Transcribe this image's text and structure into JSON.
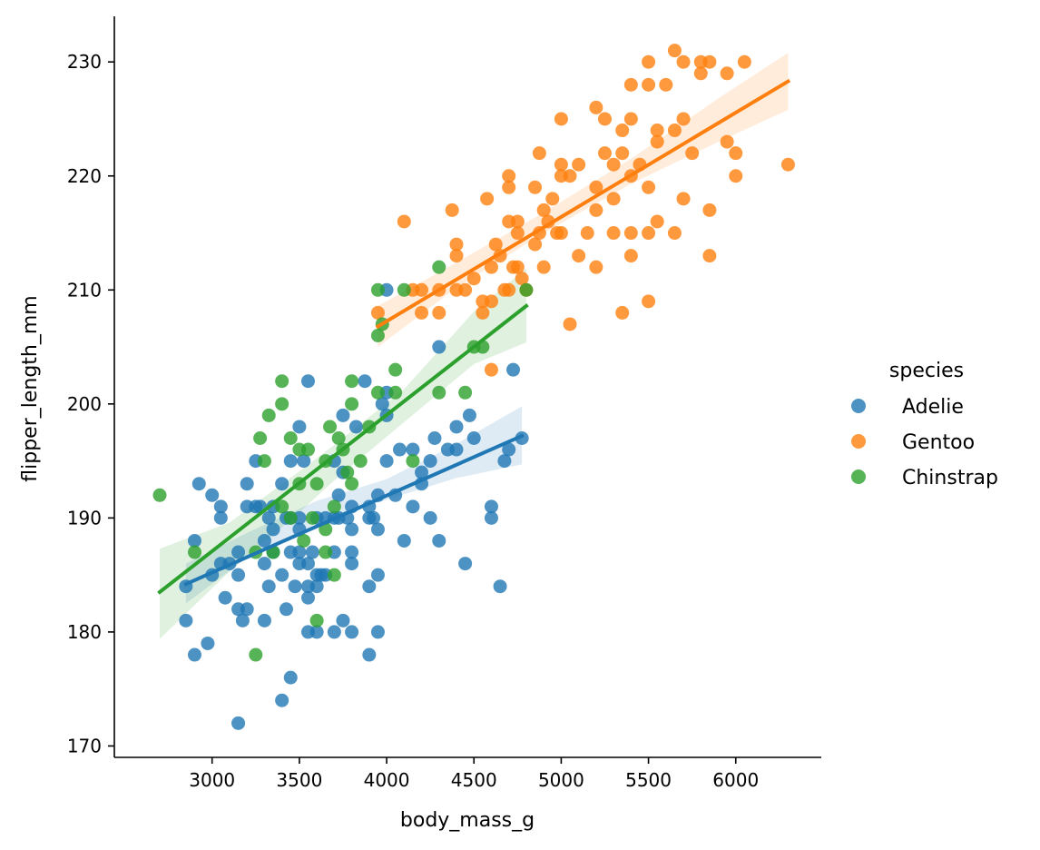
{
  "chart_data": {
    "type": "scatter",
    "title": "",
    "xlabel": "body_mass_g",
    "ylabel": "flipper_length_mm",
    "xlim": [
      2440,
      6490
    ],
    "ylim": [
      169,
      234
    ],
    "xticks": [
      3000,
      3500,
      4000,
      4500,
      5000,
      5500,
      6000
    ],
    "yticks": [
      170,
      180,
      190,
      200,
      210,
      220,
      230
    ],
    "grid": false,
    "legend": {
      "title": "species",
      "placement": "right"
    },
    "series": [
      {
        "name": "Adelie",
        "color": "#1f77b4",
        "regression": {
          "x": [
            2850,
            4775
          ],
          "y": [
            184.2,
            197.2
          ]
        },
        "ci": {
          "x": [
            2850,
            3200,
            3600,
            4000,
            4400,
            4775
          ],
          "lower": [
            182.5,
            186.5,
            189.5,
            191.6,
            193.5,
            194.7
          ],
          "upper": [
            186.0,
            188.7,
            191.5,
            193.4,
            196.5,
            199.8
          ]
        },
        "points": [
          [
            2850,
            184
          ],
          [
            2850,
            181
          ],
          [
            2900,
            178
          ],
          [
            2900,
            188
          ],
          [
            2925,
            193
          ],
          [
            2975,
            179
          ],
          [
            3000,
            185
          ],
          [
            3000,
            192
          ],
          [
            3050,
            186
          ],
          [
            3050,
            191
          ],
          [
            3050,
            190
          ],
          [
            3075,
            183
          ],
          [
            3100,
            186
          ],
          [
            3150,
            187
          ],
          [
            3150,
            185
          ],
          [
            3150,
            182
          ],
          [
            3150,
            172
          ],
          [
            3175,
            181
          ],
          [
            3200,
            193
          ],
          [
            3200,
            182
          ],
          [
            3200,
            191
          ],
          [
            3250,
            195
          ],
          [
            3250,
            191
          ],
          [
            3275,
            191
          ],
          [
            3300,
            181
          ],
          [
            3300,
            186
          ],
          [
            3300,
            188
          ],
          [
            3325,
            184
          ],
          [
            3325,
            190
          ],
          [
            3350,
            189
          ],
          [
            3350,
            191
          ],
          [
            3350,
            187
          ],
          [
            3400,
            185
          ],
          [
            3400,
            193
          ],
          [
            3400,
            174
          ],
          [
            3425,
            182
          ],
          [
            3425,
            190
          ],
          [
            3450,
            190
          ],
          [
            3450,
            187
          ],
          [
            3450,
            195
          ],
          [
            3450,
            176
          ],
          [
            3475,
            184
          ],
          [
            3500,
            187
          ],
          [
            3500,
            189
          ],
          [
            3500,
            198
          ],
          [
            3500,
            190
          ],
          [
            3500,
            186
          ],
          [
            3525,
            195
          ],
          [
            3550,
            202
          ],
          [
            3550,
            184
          ],
          [
            3550,
            180
          ],
          [
            3550,
            183
          ],
          [
            3550,
            186
          ],
          [
            3575,
            187
          ],
          [
            3600,
            180
          ],
          [
            3600,
            185
          ],
          [
            3600,
            184
          ],
          [
            3600,
            190
          ],
          [
            3625,
            185
          ],
          [
            3650,
            190
          ],
          [
            3650,
            185
          ],
          [
            3700,
            190
          ],
          [
            3700,
            180
          ],
          [
            3700,
            187
          ],
          [
            3700,
            195
          ],
          [
            3725,
            192
          ],
          [
            3725,
            190
          ],
          [
            3750,
            199
          ],
          [
            3750,
            181
          ],
          [
            3750,
            194
          ],
          [
            3775,
            190
          ],
          [
            3800,
            187
          ],
          [
            3800,
            186
          ],
          [
            3800,
            180
          ],
          [
            3800,
            189
          ],
          [
            3800,
            191
          ],
          [
            3825,
            198
          ],
          [
            3875,
            202
          ],
          [
            3900,
            184
          ],
          [
            3900,
            190
          ],
          [
            3900,
            178
          ],
          [
            3900,
            191
          ],
          [
            3925,
            190
          ],
          [
            3950,
            185
          ],
          [
            3950,
            180
          ],
          [
            3950,
            192
          ],
          [
            3950,
            189
          ],
          [
            3975,
            200
          ],
          [
            4000,
            199
          ],
          [
            4000,
            201
          ],
          [
            4000,
            195
          ],
          [
            4000,
            210
          ],
          [
            4050,
            192
          ],
          [
            4075,
            196
          ],
          [
            4100,
            188
          ],
          [
            4150,
            191
          ],
          [
            4150,
            196
          ],
          [
            4200,
            193
          ],
          [
            4200,
            194
          ],
          [
            4250,
            190
          ],
          [
            4250,
            195
          ],
          [
            4275,
            197
          ],
          [
            4300,
            188
          ],
          [
            4300,
            205
          ],
          [
            4350,
            196
          ],
          [
            4400,
            198
          ],
          [
            4400,
            196
          ],
          [
            4450,
            186
          ],
          [
            4475,
            199
          ],
          [
            4500,
            197
          ],
          [
            4600,
            191
          ],
          [
            4600,
            190
          ],
          [
            4650,
            184
          ],
          [
            4675,
            195
          ],
          [
            4700,
            196
          ],
          [
            4725,
            203
          ],
          [
            4775,
            197
          ]
        ]
      },
      {
        "name": "Gentoo",
        "color": "#ff7f0e",
        "regression": {
          "x": [
            3950,
            6300
          ],
          "y": [
            206.8,
            228.3
          ]
        },
        "ci": {
          "x": [
            3950,
            4400,
            4900,
            5400,
            5900,
            6300
          ],
          "lower": [
            205.0,
            210.2,
            215.0,
            219.3,
            223.0,
            225.8
          ],
          "upper": [
            208.6,
            212.4,
            216.8,
            221.5,
            226.8,
            230.8
          ]
        },
        "points": [
          [
            3950,
            208
          ],
          [
            4100,
            216
          ],
          [
            4150,
            210
          ],
          [
            4200,
            210
          ],
          [
            4200,
            208
          ],
          [
            4300,
            210
          ],
          [
            4300,
            208
          ],
          [
            4375,
            217
          ],
          [
            4400,
            214
          ],
          [
            4400,
            213
          ],
          [
            4400,
            210
          ],
          [
            4450,
            210
          ],
          [
            4500,
            211
          ],
          [
            4550,
            208
          ],
          [
            4550,
            209
          ],
          [
            4575,
            218
          ],
          [
            4600,
            203
          ],
          [
            4600,
            212
          ],
          [
            4600,
            209
          ],
          [
            4625,
            214
          ],
          [
            4650,
            213
          ],
          [
            4675,
            210
          ],
          [
            4700,
            216
          ],
          [
            4700,
            220
          ],
          [
            4700,
            219
          ],
          [
            4700,
            210
          ],
          [
            4725,
            212
          ],
          [
            4750,
            216
          ],
          [
            4750,
            215
          ],
          [
            4750,
            212
          ],
          [
            4775,
            211
          ],
          [
            4800,
            210
          ],
          [
            4850,
            214
          ],
          [
            4850,
            219
          ],
          [
            4875,
            215
          ],
          [
            4875,
            222
          ],
          [
            4900,
            217
          ],
          [
            4900,
            212
          ],
          [
            4925,
            216
          ],
          [
            4950,
            218
          ],
          [
            4975,
            215
          ],
          [
            5000,
            225
          ],
          [
            5000,
            221
          ],
          [
            5000,
            220
          ],
          [
            5000,
            215
          ],
          [
            5050,
            220
          ],
          [
            5050,
            207
          ],
          [
            5100,
            221
          ],
          [
            5100,
            213
          ],
          [
            5150,
            215
          ],
          [
            5200,
            226
          ],
          [
            5200,
            217
          ],
          [
            5200,
            219
          ],
          [
            5200,
            212
          ],
          [
            5250,
            225
          ],
          [
            5250,
            222
          ],
          [
            5300,
            221
          ],
          [
            5300,
            218
          ],
          [
            5300,
            215
          ],
          [
            5350,
            224
          ],
          [
            5350,
            222
          ],
          [
            5350,
            208
          ],
          [
            5400,
            228
          ],
          [
            5400,
            225
          ],
          [
            5400,
            220
          ],
          [
            5400,
            215
          ],
          [
            5400,
            213
          ],
          [
            5450,
            221
          ],
          [
            5500,
            230
          ],
          [
            5500,
            228
          ],
          [
            5500,
            219
          ],
          [
            5500,
            215
          ],
          [
            5500,
            209
          ],
          [
            5550,
            224
          ],
          [
            5550,
            223
          ],
          [
            5550,
            216
          ],
          [
            5600,
            228
          ],
          [
            5650,
            231
          ],
          [
            5650,
            224
          ],
          [
            5650,
            215
          ],
          [
            5700,
            230
          ],
          [
            5700,
            225
          ],
          [
            5700,
            218
          ],
          [
            5750,
            222
          ],
          [
            5800,
            229
          ],
          [
            5800,
            230
          ],
          [
            5850,
            230
          ],
          [
            5850,
            217
          ],
          [
            5850,
            213
          ],
          [
            5950,
            229
          ],
          [
            5950,
            223
          ],
          [
            6000,
            222
          ],
          [
            6000,
            220
          ],
          [
            6050,
            230
          ],
          [
            6300,
            221
          ]
        ]
      },
      {
        "name": "Chinstrap",
        "color": "#2ca02c",
        "regression": {
          "x": [
            2700,
            4800
          ],
          "y": [
            183.5,
            208.6
          ]
        },
        "ci": {
          "x": [
            2700,
            3100,
            3500,
            3700,
            4100,
            4500,
            4800
          ],
          "lower": [
            179.4,
            185.3,
            190.5,
            193.3,
            198.4,
            203.5,
            205.4
          ],
          "upper": [
            187.3,
            189.6,
            194.1,
            196.4,
            201.3,
            208.1,
            211.9
          ]
        },
        "points": [
          [
            2700,
            192
          ],
          [
            2900,
            187
          ],
          [
            3250,
            187
          ],
          [
            3250,
            178
          ],
          [
            3275,
            197
          ],
          [
            3300,
            195
          ],
          [
            3325,
            199
          ],
          [
            3350,
            187
          ],
          [
            3400,
            200
          ],
          [
            3400,
            202
          ],
          [
            3400,
            191
          ],
          [
            3450,
            190
          ],
          [
            3450,
            197
          ],
          [
            3500,
            196
          ],
          [
            3500,
            193
          ],
          [
            3525,
            188
          ],
          [
            3550,
            196
          ],
          [
            3575,
            190
          ],
          [
            3600,
            181
          ],
          [
            3600,
            193
          ],
          [
            3650,
            187
          ],
          [
            3650,
            189
          ],
          [
            3650,
            195
          ],
          [
            3675,
            198
          ],
          [
            3700,
            185
          ],
          [
            3700,
            191
          ],
          [
            3725,
            197
          ],
          [
            3750,
            196
          ],
          [
            3775,
            194
          ],
          [
            3800,
            193
          ],
          [
            3800,
            200
          ],
          [
            3800,
            202
          ],
          [
            3850,
            195
          ],
          [
            3900,
            198
          ],
          [
            3950,
            210
          ],
          [
            3950,
            206
          ],
          [
            3950,
            201
          ],
          [
            3975,
            207
          ],
          [
            4050,
            201
          ],
          [
            4050,
            203
          ],
          [
            4100,
            210
          ],
          [
            4150,
            195
          ],
          [
            4300,
            212
          ],
          [
            4300,
            201
          ],
          [
            4450,
            201
          ],
          [
            4500,
            205
          ],
          [
            4550,
            205
          ],
          [
            4800,
            210
          ]
        ]
      }
    ]
  }
}
